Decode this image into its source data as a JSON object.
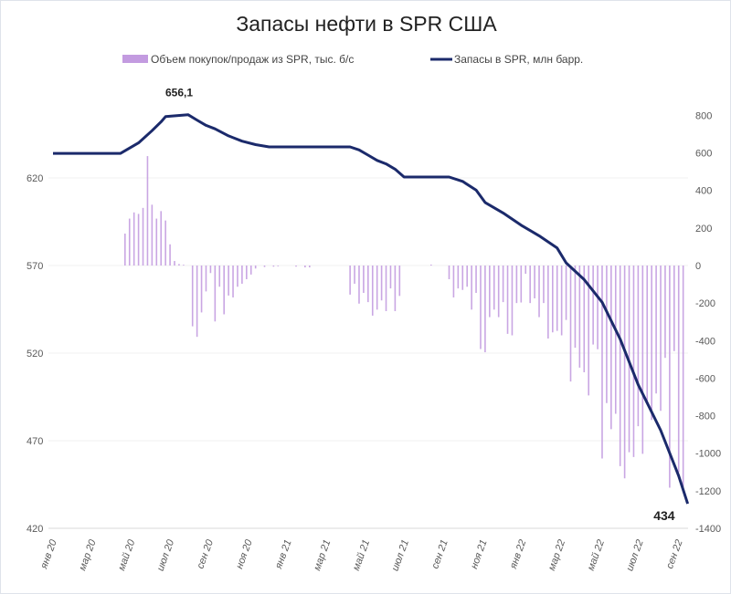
{
  "chart_data": {
    "type": "bar+line",
    "title": "Запасы нефти в SPR США",
    "legend": [
      {
        "name": "Объем покупок/продаж из SPR, тыс. б/с",
        "color": "#c39be0",
        "kind": "bar"
      },
      {
        "name": "Запасы в SPR, млн барр.",
        "color": "#1b2a6b",
        "kind": "line"
      }
    ],
    "legend_position": "top",
    "left_axis": {
      "ylim": [
        420,
        670
      ],
      "ticks": [
        "420",
        "470",
        "520",
        "570",
        "620"
      ]
    },
    "right_axis": {
      "ylim": [
        -1400,
        800
      ],
      "ticks": [
        "800",
        "600",
        "400",
        "200",
        "0",
        "-200",
        "-400",
        "-600",
        "-800",
        "-1000",
        "-1200",
        "-1400"
      ]
    },
    "x_tick_labels": [
      "янв 20",
      "мар 20",
      "май 20",
      "июл 20",
      "сен 20",
      "ноя 20",
      "янв 21",
      "мар 21",
      "май 21",
      "июл 21",
      "сен 21",
      "ноя 21",
      "янв 22",
      "мар 22",
      "май 22",
      "июл 22",
      "сен 22"
    ],
    "x_unit": "week index from Jan 2020",
    "bars_weekly": [
      0,
      0,
      0,
      0,
      0,
      0,
      0,
      0,
      0,
      0,
      0,
      0,
      0,
      0,
      0,
      0,
      170,
      250,
      283,
      275,
      307,
      583,
      324,
      250,
      290,
      240,
      113,
      24,
      8,
      4,
      0,
      -324,
      -380,
      -250,
      -138,
      -40,
      -298,
      -113,
      -260,
      -160,
      -170,
      -113,
      -97,
      -73,
      -48,
      -16,
      0,
      -8,
      0,
      -6,
      -4,
      0,
      0,
      0,
      -6,
      0,
      -10,
      -10,
      0,
      0,
      0,
      0,
      0,
      0,
      0,
      0,
      -155,
      -97,
      -203,
      -146,
      -195,
      -267,
      -235,
      -186,
      -243,
      -122,
      -243,
      -162,
      0,
      0,
      0,
      0,
      0,
      0,
      5,
      0,
      0,
      0,
      -73,
      -170,
      -122,
      -130,
      -113,
      -235,
      -146,
      -445,
      -462,
      -275,
      -235,
      -275,
      -195,
      -364,
      -372,
      -200,
      -197,
      -44,
      -200,
      -175,
      -275,
      -200,
      -389,
      -356,
      -348,
      -372,
      -290,
      -618,
      -438,
      -544,
      -569,
      -692,
      -421,
      -446,
      -1028,
      -733,
      -872,
      -790,
      -1069,
      -1134,
      -995,
      -1020,
      -856,
      -1003,
      -733,
      -823,
      -682,
      -774,
      -492,
      -1184,
      -456,
      -1102,
      -1184
    ],
    "line_points": [
      [
        0,
        634
      ],
      [
        15,
        634
      ],
      [
        19,
        640
      ],
      [
        22,
        647
      ],
      [
        24,
        652
      ],
      [
        25,
        655
      ],
      [
        30,
        656.1
      ],
      [
        32,
        653
      ],
      [
        34,
        650
      ],
      [
        36,
        648
      ],
      [
        39,
        644
      ],
      [
        42,
        641
      ],
      [
        45,
        639
      ],
      [
        48,
        637.7
      ],
      [
        66,
        637.7
      ],
      [
        68,
        636
      ],
      [
        70,
        633
      ],
      [
        72,
        630
      ],
      [
        74,
        628
      ],
      [
        76,
        625
      ],
      [
        78,
        620.5
      ],
      [
        88,
        620.5
      ],
      [
        91,
        618
      ],
      [
        94,
        613
      ],
      [
        96,
        606
      ],
      [
        100,
        600
      ],
      [
        104,
        593
      ],
      [
        108,
        587
      ],
      [
        112,
        580
      ],
      [
        114,
        571.5
      ],
      [
        118,
        562
      ],
      [
        122,
        549
      ],
      [
        126,
        528
      ],
      [
        130,
        502
      ],
      [
        135,
        476
      ],
      [
        139,
        450
      ],
      [
        141,
        434
      ]
    ],
    "annotations": [
      {
        "text": "656,1",
        "week": 27,
        "value": 656.1
      },
      {
        "text": "434",
        "week": 141,
        "value": 434
      }
    ]
  }
}
